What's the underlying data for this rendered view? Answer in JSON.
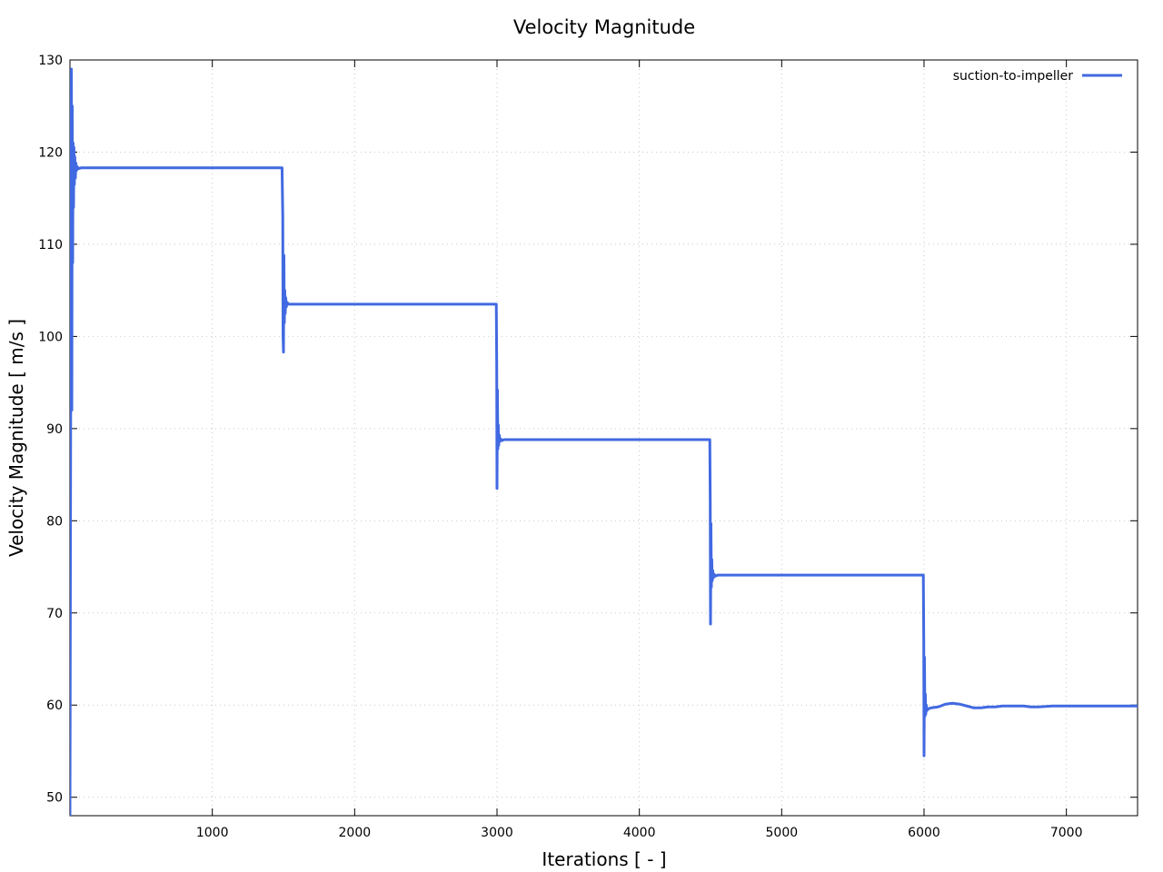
{
  "chart_data": {
    "type": "line",
    "title": "Velocity Magnitude",
    "xlabel": "Iterations [ - ]",
    "ylabel": "Velocity Magnitude [ m/s ]",
    "xlim": [
      0,
      7500
    ],
    "ylim": [
      48,
      130
    ],
    "xticks": [
      1000,
      2000,
      3000,
      4000,
      5000,
      6000,
      7000
    ],
    "yticks": [
      50,
      60,
      70,
      80,
      90,
      100,
      110,
      120,
      130
    ],
    "grid": true,
    "legend_position": "top-right",
    "color": "#4169e1",
    "series": [
      {
        "name": "suction-to-impeller",
        "x": [
          0,
          6,
          10,
          13,
          16,
          19,
          22,
          25,
          28,
          31,
          34,
          38,
          42,
          46,
          52,
          60,
          80,
          150,
          400,
          800,
          1200,
          1490,
          1495,
          1497,
          1500,
          1503,
          1506,
          1509,
          1512,
          1516,
          1520,
          1525,
          1535,
          1550,
          1600,
          2000,
          2500,
          2995,
          2998,
          3000,
          3003,
          3006,
          3009,
          3012,
          3016,
          3020,
          3025,
          3035,
          3050,
          3100,
          3500,
          4000,
          4495,
          4498,
          4500,
          4503,
          4506,
          4509,
          4512,
          4516,
          4520,
          4525,
          4535,
          4550,
          4600,
          5000,
          5500,
          5995,
          5998,
          6000,
          6003,
          6006,
          6009,
          6012,
          6016,
          6020,
          6030,
          6050,
          6100,
          6150,
          6200,
          6250,
          6300,
          6350,
          6400,
          6450,
          6500,
          6550,
          6600,
          6650,
          6700,
          6750,
          6800,
          6900,
          7000,
          7200,
          7500
        ],
        "y": [
          48,
          100,
          129,
          92,
          125,
          108,
          121,
          114,
          120.5,
          116.5,
          119.5,
          117.2,
          118.8,
          118.0,
          118.4,
          118.2,
          118.3,
          118.3,
          118.3,
          118.3,
          118.3,
          118.3,
          113,
          100,
          98.3,
          108.8,
          101.5,
          105,
          102.5,
          104.2,
          103.2,
          103.7,
          103.5,
          103.5,
          103.5,
          103.5,
          103.5,
          103.5,
          97,
          83.5,
          94.2,
          87.8,
          90.4,
          88.2,
          89.3,
          88.6,
          88.9,
          88.7,
          88.8,
          88.8,
          88.8,
          88.8,
          88.8,
          82,
          68.8,
          79.7,
          72.8,
          75.8,
          73.5,
          74.6,
          73.8,
          74.2,
          74.0,
          74.1,
          74.1,
          74.1,
          74.1,
          74.1,
          67,
          54.5,
          65.2,
          58.8,
          61.2,
          59.0,
          60.0,
          59.4,
          59.6,
          59.7,
          59.8,
          60.1,
          60.2,
          60.1,
          59.9,
          59.7,
          59.7,
          59.8,
          59.8,
          59.9,
          59.9,
          59.9,
          59.9,
          59.8,
          59.8,
          59.9,
          59.9,
          59.9,
          59.9
        ]
      }
    ]
  }
}
